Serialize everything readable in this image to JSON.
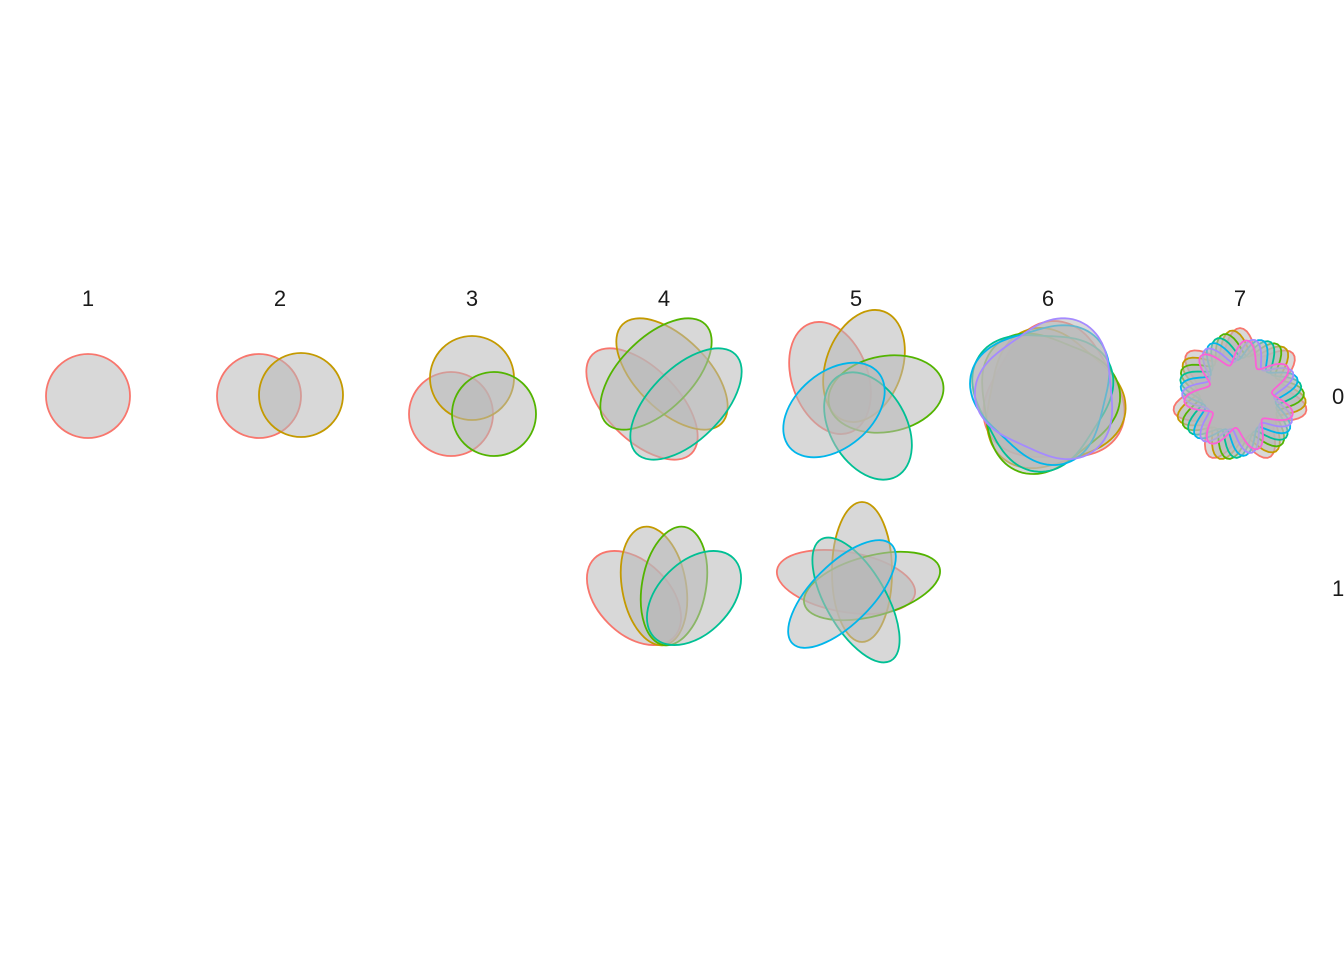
{
  "columns": [
    "1",
    "2",
    "3",
    "4",
    "5",
    "6",
    "7"
  ],
  "rows": [
    "0",
    "1"
  ],
  "set_colors": [
    "#F8766D",
    "#C49A00",
    "#53B400",
    "#00C094",
    "#00B6EB",
    "#A58AFF",
    "#FB61D7"
  ],
  "fill_color": "#b8b8b8",
  "panels": [
    {
      "column": "1",
      "row": "0",
      "sets": 1
    },
    {
      "column": "2",
      "row": "0",
      "sets": 2
    },
    {
      "column": "3",
      "row": "0",
      "sets": 3
    },
    {
      "column": "4",
      "row": "0",
      "sets": 4
    },
    {
      "column": "5",
      "row": "0",
      "sets": 5
    },
    {
      "column": "6",
      "row": "0",
      "sets": 6
    },
    {
      "column": "7",
      "row": "0",
      "sets": 7
    },
    {
      "column": "4",
      "row": "1",
      "sets": 4
    },
    {
      "column": "5",
      "row": "1",
      "sets": 5
    }
  ]
}
